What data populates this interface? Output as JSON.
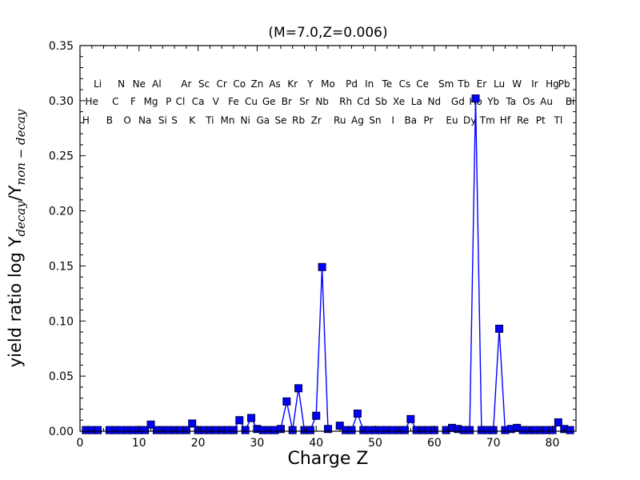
{
  "title": "(M=7.0,Z=0.006)",
  "axes": {
    "xlabel": "Charge Z",
    "ylabel_parts": {
      "prefix": "yield ratio log Y",
      "sub1": "decay",
      "mid": "/Y",
      "sub2": "non − decay"
    }
  },
  "colors": {
    "line": "#0000FF",
    "marker_fill": "#0000FF",
    "marker_edge": "#000040",
    "axis": "#000000",
    "text": "#000000"
  },
  "chart_data": {
    "type": "line",
    "title": "(M=7.0,Z=0.006)",
    "xlabel": "Charge Z",
    "ylabel": "yield ratio log Y_decay/Y_non-decay",
    "xlim": [
      0,
      84
    ],
    "ylim": [
      0,
      0.35
    ],
    "x_ticks": [
      0,
      10,
      20,
      30,
      40,
      50,
      60,
      70,
      80
    ],
    "y_ticks": [
      "0.00",
      "0.05",
      "0.10",
      "0.15",
      "0.20",
      "0.25",
      "0.30",
      "0.35"
    ],
    "x_minor_step": 2,
    "y_minor_step": 0.01,
    "grid": false,
    "legend": "none",
    "series": [
      {
        "name": "yield ratio",
        "marker": "square",
        "color": "#0000FF",
        "points": [
          [
            1,
            0.001
          ],
          [
            2,
            0.001
          ],
          [
            3,
            0.001
          ],
          [
            5,
            0.001
          ],
          [
            6,
            0.001
          ],
          [
            7,
            0.001
          ],
          [
            8,
            0.001
          ],
          [
            9,
            0.001
          ],
          [
            10,
            0.001
          ],
          [
            11,
            0.001
          ],
          [
            12,
            0.006
          ],
          [
            13,
            0.001
          ],
          [
            14,
            0.001
          ],
          [
            15,
            0.001
          ],
          [
            16,
            0.001
          ],
          [
            17,
            0.001
          ],
          [
            18,
            0.001
          ],
          [
            19,
            0.007
          ],
          [
            20,
            0.001
          ],
          [
            21,
            0.001
          ],
          [
            22,
            0.001
          ],
          [
            23,
            0.001
          ],
          [
            24,
            0.001
          ],
          [
            25,
            0.001
          ],
          [
            26,
            0.001
          ],
          [
            27,
            0.01
          ],
          [
            28,
            0.001
          ],
          [
            29,
            0.012
          ],
          [
            30,
            0.002
          ],
          [
            31,
            0.001
          ],
          [
            32,
            0.001
          ],
          [
            33,
            0.001
          ],
          [
            34,
            0.002
          ],
          [
            35,
            0.027
          ],
          [
            36,
            0.001
          ],
          [
            37,
            0.039
          ],
          [
            38,
            0.001
          ],
          [
            39,
            0.001
          ],
          [
            40,
            0.014
          ],
          [
            41,
            0.149
          ],
          [
            42,
            0.002
          ],
          [
            44,
            0.005
          ],
          [
            45,
            0.001
          ],
          [
            46,
            0.001
          ],
          [
            47,
            0.016
          ],
          [
            48,
            0.001
          ],
          [
            49,
            0.001
          ],
          [
            50,
            0.001
          ],
          [
            51,
            0.001
          ],
          [
            52,
            0.001
          ],
          [
            53,
            0.001
          ],
          [
            54,
            0.001
          ],
          [
            55,
            0.001
          ],
          [
            56,
            0.011
          ],
          [
            57,
            0.001
          ],
          [
            58,
            0.001
          ],
          [
            59,
            0.001
          ],
          [
            60,
            0.001
          ],
          [
            62,
            0.001
          ],
          [
            63,
            0.003
          ],
          [
            64,
            0.002
          ],
          [
            65,
            0.001
          ],
          [
            66,
            0.001
          ],
          [
            67,
            0.302
          ],
          [
            68,
            0.001
          ],
          [
            69,
            0.001
          ],
          [
            70,
            0.001
          ],
          [
            71,
            0.093
          ],
          [
            72,
            0.001
          ],
          [
            73,
            0.002
          ],
          [
            74,
            0.003
          ],
          [
            75,
            0.001
          ],
          [
            76,
            0.001
          ],
          [
            77,
            0.001
          ],
          [
            78,
            0.001
          ],
          [
            79,
            0.001
          ],
          [
            80,
            0.001
          ],
          [
            81,
            0.008
          ],
          [
            82,
            0.002
          ],
          [
            83,
            0.001
          ]
        ]
      }
    ],
    "label_row_values": {
      "top": 0.315,
      "middle": 0.299,
      "bottom": 0.282
    },
    "element_labels": [
      {
        "z": 1,
        "symbol": "H",
        "row": "bottom"
      },
      {
        "z": 2,
        "symbol": "He",
        "row": "middle"
      },
      {
        "z": 3,
        "symbol": "Li",
        "row": "top"
      },
      {
        "z": 5,
        "symbol": "B",
        "row": "bottom"
      },
      {
        "z": 6,
        "symbol": "C",
        "row": "middle"
      },
      {
        "z": 7,
        "symbol": "N",
        "row": "top"
      },
      {
        "z": 8,
        "symbol": "O",
        "row": "bottom"
      },
      {
        "z": 9,
        "symbol": "F",
        "row": "middle"
      },
      {
        "z": 10,
        "symbol": "Ne",
        "row": "top"
      },
      {
        "z": 11,
        "symbol": "Na",
        "row": "bottom"
      },
      {
        "z": 12,
        "symbol": "Mg",
        "row": "middle"
      },
      {
        "z": 13,
        "symbol": "Al",
        "row": "top"
      },
      {
        "z": 14,
        "symbol": "Si",
        "row": "bottom"
      },
      {
        "z": 15,
        "symbol": "P",
        "row": "middle"
      },
      {
        "z": 16,
        "symbol": "S",
        "row": "bottom"
      },
      {
        "z": 17,
        "symbol": "Cl",
        "row": "middle"
      },
      {
        "z": 18,
        "symbol": "Ar",
        "row": "top"
      },
      {
        "z": 19,
        "symbol": "K",
        "row": "bottom"
      },
      {
        "z": 20,
        "symbol": "Ca",
        "row": "middle"
      },
      {
        "z": 21,
        "symbol": "Sc",
        "row": "top"
      },
      {
        "z": 22,
        "symbol": "Ti",
        "row": "bottom"
      },
      {
        "z": 23,
        "symbol": "V",
        "row": "middle"
      },
      {
        "z": 24,
        "symbol": "Cr",
        "row": "top"
      },
      {
        "z": 25,
        "symbol": "Mn",
        "row": "bottom"
      },
      {
        "z": 26,
        "symbol": "Fe",
        "row": "middle"
      },
      {
        "z": 27,
        "symbol": "Co",
        "row": "top"
      },
      {
        "z": 28,
        "symbol": "Ni",
        "row": "bottom"
      },
      {
        "z": 29,
        "symbol": "Cu",
        "row": "middle"
      },
      {
        "z": 30,
        "symbol": "Zn",
        "row": "top"
      },
      {
        "z": 31,
        "symbol": "Ga",
        "row": "bottom"
      },
      {
        "z": 32,
        "symbol": "Ge",
        "row": "middle"
      },
      {
        "z": 33,
        "symbol": "As",
        "row": "top"
      },
      {
        "z": 34,
        "symbol": "Se",
        "row": "bottom"
      },
      {
        "z": 35,
        "symbol": "Br",
        "row": "middle"
      },
      {
        "z": 36,
        "symbol": "Kr",
        "row": "top"
      },
      {
        "z": 37,
        "symbol": "Rb",
        "row": "bottom"
      },
      {
        "z": 38,
        "symbol": "Sr",
        "row": "middle"
      },
      {
        "z": 39,
        "symbol": "Y",
        "row": "top"
      },
      {
        "z": 40,
        "symbol": "Zr",
        "row": "bottom"
      },
      {
        "z": 41,
        "symbol": "Nb",
        "row": "middle"
      },
      {
        "z": 42,
        "symbol": "Mo",
        "row": "top"
      },
      {
        "z": 44,
        "symbol": "Ru",
        "row": "bottom"
      },
      {
        "z": 45,
        "symbol": "Rh",
        "row": "middle"
      },
      {
        "z": 46,
        "symbol": "Pd",
        "row": "top"
      },
      {
        "z": 47,
        "symbol": "Ag",
        "row": "bottom"
      },
      {
        "z": 48,
        "symbol": "Cd",
        "row": "middle"
      },
      {
        "z": 49,
        "symbol": "In",
        "row": "top"
      },
      {
        "z": 50,
        "symbol": "Sn",
        "row": "bottom"
      },
      {
        "z": 51,
        "symbol": "Sb",
        "row": "middle"
      },
      {
        "z": 52,
        "symbol": "Te",
        "row": "top"
      },
      {
        "z": 53,
        "symbol": "I",
        "row": "bottom"
      },
      {
        "z": 54,
        "symbol": "Xe",
        "row": "middle"
      },
      {
        "z": 55,
        "symbol": "Cs",
        "row": "top"
      },
      {
        "z": 56,
        "symbol": "Ba",
        "row": "bottom"
      },
      {
        "z": 57,
        "symbol": "La",
        "row": "middle"
      },
      {
        "z": 58,
        "symbol": "Ce",
        "row": "top"
      },
      {
        "z": 59,
        "symbol": "Pr",
        "row": "bottom"
      },
      {
        "z": 60,
        "symbol": "Nd",
        "row": "middle"
      },
      {
        "z": 62,
        "symbol": "Sm",
        "row": "top"
      },
      {
        "z": 63,
        "symbol": "Eu",
        "row": "bottom"
      },
      {
        "z": 64,
        "symbol": "Gd",
        "row": "middle"
      },
      {
        "z": 65,
        "symbol": "Tb",
        "row": "top"
      },
      {
        "z": 66,
        "symbol": "Dy",
        "row": "bottom"
      },
      {
        "z": 67,
        "symbol": "Ho",
        "row": "middle"
      },
      {
        "z": 68,
        "symbol": "Er",
        "row": "top"
      },
      {
        "z": 69,
        "symbol": "Tm",
        "row": "bottom"
      },
      {
        "z": 70,
        "symbol": "Yb",
        "row": "middle"
      },
      {
        "z": 71,
        "symbol": "Lu",
        "row": "top"
      },
      {
        "z": 72,
        "symbol": "Hf",
        "row": "bottom"
      },
      {
        "z": 73,
        "symbol": "Ta",
        "row": "middle"
      },
      {
        "z": 74,
        "symbol": "W",
        "row": "top"
      },
      {
        "z": 75,
        "symbol": "Re",
        "row": "bottom"
      },
      {
        "z": 76,
        "symbol": "Os",
        "row": "middle"
      },
      {
        "z": 77,
        "symbol": "Ir",
        "row": "top"
      },
      {
        "z": 78,
        "symbol": "Pt",
        "row": "bottom"
      },
      {
        "z": 79,
        "symbol": "Au",
        "row": "middle"
      },
      {
        "z": 80,
        "symbol": "Hg",
        "row": "top"
      },
      {
        "z": 81,
        "symbol": "Tl",
        "row": "bottom"
      },
      {
        "z": 82,
        "symbol": "Pb",
        "row": "top"
      },
      {
        "z": 83,
        "symbol": "Bi",
        "row": "middle"
      }
    ]
  }
}
